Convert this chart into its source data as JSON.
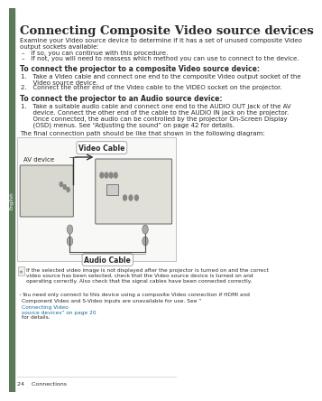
{
  "bg_color": "#f5f5f0",
  "page_bg": "#ffffff",
  "sidebar_color": "#5a7a5a",
  "sidebar_text": "English",
  "title": "Connecting Composite Video source devices",
  "title_fontsize": 9.5,
  "body_fontsize": 5.0,
  "small_fontsize": 4.2,
  "bold_sub1": "To connect the projector to a composite Video source device:",
  "bold_sub2": "To connect the projector to an Audio source device:",
  "body_intro": "Examine your Video source device to determine if it has a set of unused composite Video\noutput sockets available:",
  "bullet1": "–   If so, you can continue with this procedure.",
  "bullet2": "–   If not, you will need to reassess which method you can use to connect to the device.",
  "step1a": "1.   Take a Video cable and connect one end to the composite Video output socket of the\n      Video source device.",
  "step2a": "2.   Connect the other end of the Video cable to the VIDEO socket on the projector.",
  "step1b": "1.   Take a suitable audio cable and connect one end to the AUDIO OUT jack of the AV\n      device. Connect the other end of the cable to the AUDIO IN jack on the projector.\n      Once connected, the audio can be controlled by the projector On-Screen Display\n      (OSD) menus. See “Adjusting the sound” on page 42 for details.",
  "diagram_caption": "The final connection path should be like that shown in the following diagram:",
  "label_av": "AV device",
  "label_video_cable": "Video Cable",
  "label_audio_cable": "Audio Cable",
  "note1": "If the selected video image is not displayed after the projector is turned on and the correct\nvideo source has been selected, check that the Video source device is turned on and\noperating correctly. Also check that the signal cables have been connected correctly.",
  "note2": "You need only connect to this device using a composite Video connection if HDMI and\nComponent Video and S-Video inputs are unavailable for use. See “Connecting Video\nsource devices” on page 20 for details.",
  "note2_link": "Connecting Video\nsource devices” on page 20",
  "footer": "24    Connections",
  "footer_fontsize": 4.5,
  "text_color": "#2a2a2a",
  "link_color": "#1a6b9a"
}
